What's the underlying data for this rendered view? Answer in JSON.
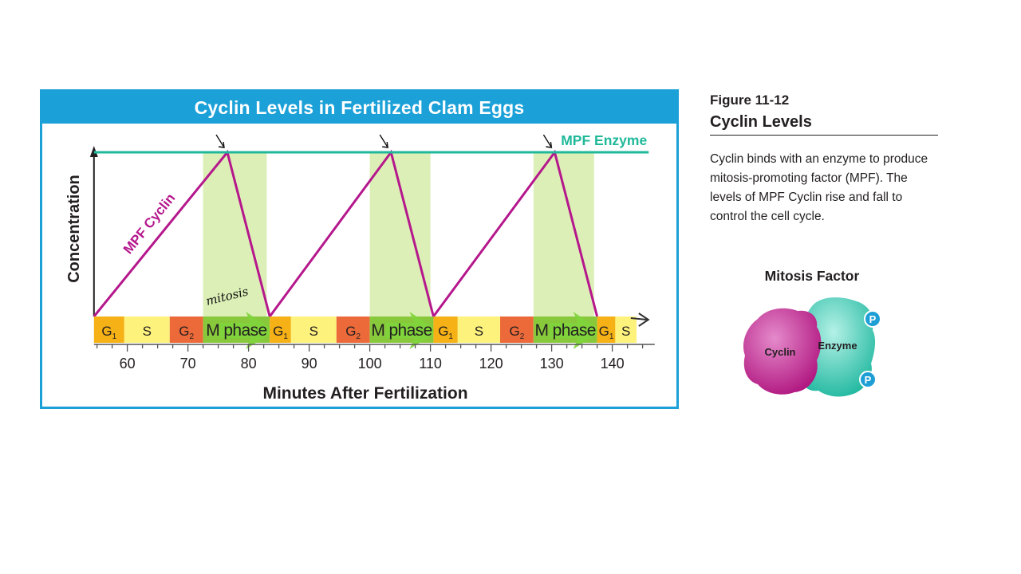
{
  "chart_data": {
    "type": "line",
    "title": "Cyclin Levels in Fertilized Clam Eggs",
    "xlabel": "Minutes After Fertilization",
    "ylabel": "Concentration",
    "xlim": [
      54,
      147
    ],
    "ylim": [
      0,
      1
    ],
    "xticks": [
      60,
      70,
      80,
      90,
      100,
      110,
      120,
      130,
      140
    ],
    "grid": false,
    "series": [
      {
        "name": "MPF Cyclin",
        "color": "#b5178c",
        "x": [
          54.5,
          76.5,
          83.5,
          103.5,
          110.5,
          130.5,
          137.5
        ],
        "y": [
          0,
          1,
          0,
          1,
          0,
          1,
          0
        ]
      },
      {
        "name": "MPF Enzyme",
        "color": "#1fb99a",
        "x": [
          54.5,
          146
        ],
        "y": [
          1,
          1
        ]
      }
    ],
    "mitosis_shading": {
      "color": "#dcefb6",
      "ranges": [
        [
          72.5,
          83
        ],
        [
          100,
          110
        ],
        [
          127,
          137
        ]
      ]
    },
    "phase_bar": {
      "segments": [
        {
          "label": "G",
          "sub": "1",
          "start": 54.5,
          "end": 59.5,
          "color": "#f5b115"
        },
        {
          "label": "S",
          "sub": "",
          "start": 59.5,
          "end": 67,
          "color": "#fdf27c"
        },
        {
          "label": "G",
          "sub": "2",
          "start": 67,
          "end": 72.5,
          "color": "#ec6a3a"
        },
        {
          "label": "M phase",
          "sub": "",
          "start": 72.5,
          "end": 83.5,
          "color": "#88c93c",
          "arrow": true
        },
        {
          "label": "G",
          "sub": "1",
          "start": 83.5,
          "end": 87,
          "color": "#f5b115"
        },
        {
          "label": "S",
          "sub": "",
          "start": 87,
          "end": 94.5,
          "color": "#fdf27c"
        },
        {
          "label": "G",
          "sub": "2",
          "start": 94.5,
          "end": 100,
          "color": "#ec6a3a"
        },
        {
          "label": "M phase",
          "sub": "",
          "start": 100,
          "end": 110.5,
          "color": "#88c93c",
          "arrow": true
        },
        {
          "label": "G",
          "sub": "1",
          "start": 110.5,
          "end": 114.5,
          "color": "#f5b115"
        },
        {
          "label": "S",
          "sub": "",
          "start": 114.5,
          "end": 121.5,
          "color": "#fdf27c"
        },
        {
          "label": "G",
          "sub": "2",
          "start": 121.5,
          "end": 127,
          "color": "#ec6a3a"
        },
        {
          "label": "M phase",
          "sub": "",
          "start": 127,
          "end": 137.5,
          "color": "#88c93c",
          "arrow": true
        },
        {
          "label": "G",
          "sub": "1",
          "start": 137.5,
          "end": 140.5,
          "color": "#f5b115"
        },
        {
          "label": "S",
          "sub": "",
          "start": 140.5,
          "end": 144,
          "color": "#fdf27c"
        }
      ]
    },
    "annotations": {
      "mitosis_label": "mitosis",
      "peak_arrows_at": [
        76.5,
        103.5,
        130.5
      ]
    }
  },
  "figure": {
    "number": "Figure 11-12",
    "title": "Cyclin Levels",
    "caption": "Cyclin binds with an enzyme to produce mitosis-promoting factor (MPF). The levels of MPF Cyclin rise and fall to control the cell cycle."
  },
  "inset": {
    "title": "Mitosis Factor",
    "cyclin_label": "Cyclin",
    "enzyme_label": "Enzyme",
    "phosphate_label": "P",
    "colors": {
      "cyclin": "#c6258f",
      "enzyme": "#33cdb4",
      "phosphate": "#1d9fd6"
    }
  }
}
